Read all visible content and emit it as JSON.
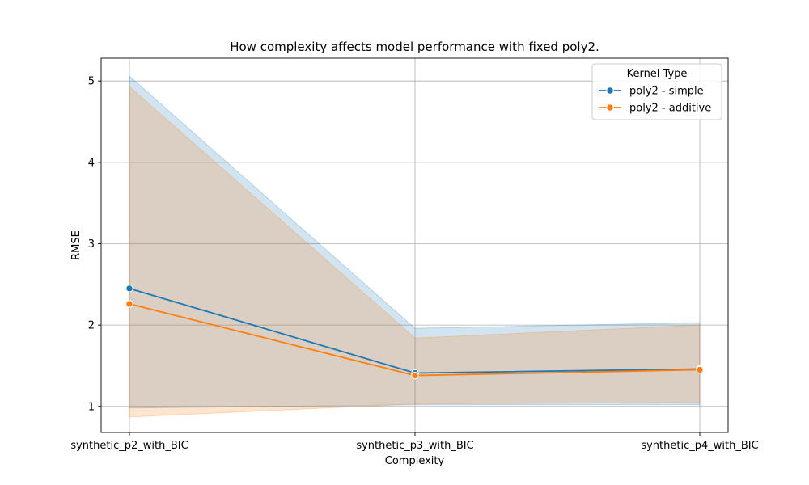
{
  "chart_data": {
    "type": "line",
    "title": "How complexity affects model performance with fixed poly2.",
    "xlabel": "Complexity",
    "ylabel": "RMSE",
    "categories": [
      "synthetic_p2_with_BIC",
      "synthetic_p3_with_BIC",
      "synthetic_p4_with_BIC"
    ],
    "ylim": [
      0.68,
      5.28
    ],
    "yticks": [
      1,
      2,
      3,
      4,
      5
    ],
    "grid": true,
    "legend": {
      "title": "Kernel Type",
      "placement": "top-right"
    },
    "series": [
      {
        "name": "poly2 - simple",
        "color": "#1f77b4",
        "values": [
          2.45,
          1.41,
          1.46
        ],
        "lower": [
          0.98,
          1.02,
          1.02
        ],
        "upper": [
          5.06,
          1.96,
          2.03
        ]
      },
      {
        "name": "poly2 - additive",
        "color": "#ff7f0e",
        "values": [
          2.26,
          1.38,
          1.45
        ],
        "lower": [
          0.87,
          1.03,
          1.05
        ],
        "upper": [
          4.93,
          1.84,
          2.0
        ]
      }
    ]
  }
}
